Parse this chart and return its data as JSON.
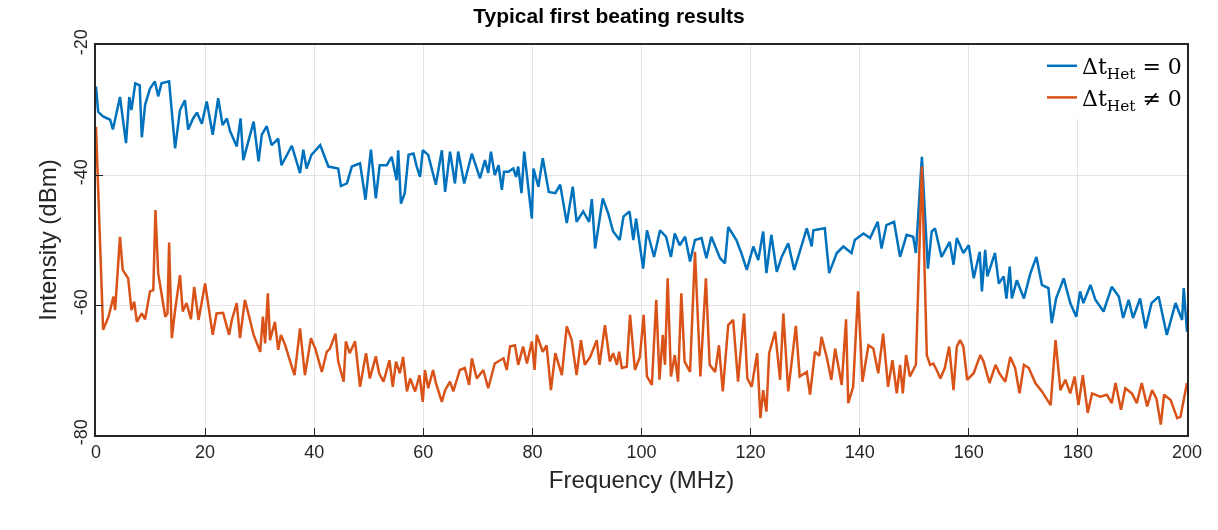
{
  "chart_data": {
    "type": "line",
    "title": "Typical first beating results",
    "xlabel": "Frequency (MHz)",
    "ylabel": "Intensity (dBm)",
    "xlim": [
      0,
      200
    ],
    "xticks": [
      0,
      20,
      40,
      60,
      80,
      100,
      120,
      140,
      160,
      180,
      200
    ],
    "ylim": [
      -80,
      -20
    ],
    "yticks": [
      -80,
      -60,
      -40,
      -20
    ],
    "grid": true,
    "legend": "top right",
    "marker": "none",
    "line_style": "solid",
    "series": [
      {
        "name": "Δt$_{Het}$ = 0",
        "color": "#0072bd",
        "x": [
          0,
          0.4,
          1.3,
          2.6,
          3.1,
          4.4,
          5.5,
          6.1,
          6.5,
          7.2,
          8,
          8.4,
          9,
          9.9,
          10.8,
          11.4,
          12,
          13.4,
          14.5,
          15.4,
          16.3,
          16.9,
          17.8,
          18.5,
          19.4,
          20.3,
          21.4,
          22.4,
          23.2,
          24,
          24.6,
          25.8,
          26.5,
          27,
          28.9,
          29.8,
          30.4,
          31.3,
          32.2,
          33.4,
          34,
          35.9,
          37.4,
          38,
          38.6,
          39.5,
          41.1,
          42.6,
          44.4,
          44.9,
          46,
          46.9,
          48.4,
          49.4,
          50.4,
          51.3,
          52,
          53.3,
          54.2,
          55.1,
          55.4,
          55.9,
          56.6,
          57.3,
          58.2,
          58.8,
          59.4,
          59.9,
          60.9,
          62.3,
          63.4,
          64,
          64.9,
          65.8,
          66.4,
          67.5,
          68.9,
          70.4,
          71.3,
          71.9,
          72.4,
          73.1,
          73.8,
          74.4,
          74.8,
          75.6,
          76.5,
          77,
          77.4,
          78,
          78.5,
          79.9,
          80.2,
          81.1,
          81.9,
          83,
          84.2,
          85.1,
          86.3,
          87.4,
          88.1,
          89.3,
          90.4,
          90.9,
          91.5,
          92.9,
          93.9,
          94.8,
          96,
          96.7,
          97.8,
          98.5,
          99,
          100.3,
          101,
          102.3,
          103.4,
          104.5,
          105.4,
          106.1,
          107,
          108,
          108.9,
          109.8,
          111,
          111.9,
          112.8,
          114.4,
          115.3,
          115.9,
          117.4,
          118.3,
          119.3,
          120.5,
          121.4,
          122.3,
          122.9,
          123.8,
          124.8,
          125.7,
          126.9,
          128,
          129.3,
          130.3,
          131.2,
          131.5,
          133.6,
          134.4,
          135.8,
          137,
          138.5,
          139.1,
          140.7,
          141.9,
          143.3,
          144,
          144.9,
          146.3,
          147.4,
          148.6,
          149.8,
          150.3,
          151.4,
          152.5,
          153.2,
          153.8,
          155,
          156.5,
          157.2,
          157.8,
          159,
          160,
          160.9,
          162,
          162.4,
          163,
          163.4,
          164.8,
          165.5,
          166.4,
          166.9,
          167.5,
          167.9,
          168.8,
          170.1,
          171.3,
          172.4,
          173.4,
          174.6,
          175.2,
          176,
          177.4,
          178.6,
          179.7,
          180.4,
          181,
          182.3,
          183.2,
          184.7,
          186.2,
          187.5,
          188.3,
          189.3,
          190.1,
          191.4,
          192.4,
          193.5,
          194.8,
          196.3,
          197.9,
          199.1,
          199.4,
          200
        ],
        "values": [
          -26.4,
          -30.3,
          -31,
          -31.5,
          -33,
          -28,
          -35.1,
          -28,
          -30,
          -25.9,
          -26.2,
          -34.2,
          -29.2,
          -26.7,
          -25.6,
          -27.9,
          -25.9,
          -25.6,
          -35.9,
          -30,
          -28.5,
          -33,
          -31.3,
          -30.4,
          -32.1,
          -28.7,
          -33.8,
          -28.2,
          -32.3,
          -31.3,
          -33.3,
          -35.6,
          -31.3,
          -37.7,
          -31.8,
          -37.9,
          -33.8,
          -32.5,
          -35.4,
          -34.4,
          -38.5,
          -35.5,
          -39.7,
          -36.1,
          -39,
          -36.9,
          -35.4,
          -38.7,
          -39,
          -41.7,
          -41.3,
          -38.7,
          -38.2,
          -43.8,
          -36.1,
          -43.6,
          -38.5,
          -38.5,
          -37.2,
          -40.8,
          -36.2,
          -44.4,
          -42.8,
          -36.9,
          -36.7,
          -38.7,
          -40.3,
          -36.2,
          -36.9,
          -41.5,
          -36.2,
          -42.6,
          -36.4,
          -41.3,
          -36.4,
          -41.3,
          -36.7,
          -40.5,
          -37.7,
          -39.7,
          -36.4,
          -40,
          -38.5,
          -42.3,
          -39.5,
          -39.5,
          -39,
          -40.3,
          -38.7,
          -42.8,
          -36.4,
          -46.7,
          -39,
          -41.8,
          -37.4,
          -42.6,
          -42.8,
          -41.5,
          -47.4,
          -41.8,
          -47.2,
          -45.6,
          -47.2,
          -43.7,
          -51.3,
          -43.6,
          -45.9,
          -48.7,
          -50,
          -46.4,
          -45.6,
          -50,
          -46.7,
          -54.4,
          -48.5,
          -52.6,
          -48.5,
          -49.5,
          -52.6,
          -49,
          -50.8,
          -49.5,
          -53.3,
          -50,
          -49.7,
          -52.8,
          -49.5,
          -52.8,
          -53.6,
          -48,
          -50,
          -52,
          -54.6,
          -51,
          -53.1,
          -48.7,
          -55.1,
          -49.2,
          -54.9,
          -52.6,
          -50.5,
          -54.6,
          -51,
          -48.2,
          -51,
          -48.5,
          -48.2,
          -55.1,
          -52,
          -51,
          -52,
          -50,
          -49,
          -49.7,
          -47.2,
          -51.3,
          -47.7,
          -47.2,
          -52.6,
          -49.2,
          -49.5,
          -52,
          -37.2,
          -54.4,
          -48.7,
          -48.2,
          -52.6,
          -50.3,
          -53.8,
          -49.7,
          -52,
          -50.8,
          -55.9,
          -51.8,
          -57.9,
          -51.5,
          -55.6,
          -52,
          -56.7,
          -55.6,
          -59,
          -54.1,
          -59,
          -56.2,
          -59,
          -55.1,
          -52.6,
          -56.9,
          -57.4,
          -62.8,
          -59,
          -55.9,
          -59.7,
          -61.8,
          -57.9,
          -59.7,
          -56.9,
          -59.2,
          -61,
          -57.2,
          -58.7,
          -62,
          -59.2,
          -62,
          -59,
          -63.6,
          -59.7,
          -58.7,
          -64.6,
          -59.7,
          -62.3,
          -57.4,
          -64.1
        ]
      },
      {
        "name": "Δt$_{Het}$ ≠ 0",
        "color": "#d95319",
        "x": [
          0,
          1.3,
          2.3,
          3.2,
          3.5,
          4.4,
          4.9,
          5.9,
          6.5,
          7,
          7.5,
          8.4,
          9,
          9.9,
          10.5,
          10.9,
          11.4,
          12.7,
          13.1,
          13.4,
          13.9,
          14.5,
          15.4,
          15.9,
          16.6,
          17.4,
          18,
          18.8,
          20,
          21.4,
          22.1,
          23.3,
          24.4,
          24.9,
          25.8,
          26.4,
          27.3,
          28.9,
          30.1,
          30.6,
          31,
          31.5,
          31.9,
          32.8,
          33.4,
          33.9,
          34.7,
          35.6,
          36.4,
          37.4,
          38.3,
          39.4,
          40.2,
          41.4,
          42.3,
          42.9,
          43.9,
          44.4,
          45.4,
          45.8,
          46.5,
          47.5,
          48.4,
          49.5,
          50.2,
          51.3,
          51.9,
          52.7,
          53.8,
          54.4,
          55,
          55.7,
          56.3,
          57,
          57.6,
          58.5,
          59.3,
          59.9,
          60.3,
          60.9,
          61.8,
          62.3,
          63.4,
          64,
          64.9,
          65.5,
          66.7,
          67.6,
          68.4,
          68.9,
          69.8,
          71,
          71.9,
          73.1,
          74.7,
          75.3,
          75.9,
          76.8,
          77.4,
          78.3,
          79,
          79.9,
          80.4,
          80.8,
          81.9,
          82.6,
          83.4,
          84.2,
          85.4,
          86.3,
          87.2,
          88.1,
          88.9,
          89.6,
          90.6,
          91.8,
          92.3,
          93.3,
          94.2,
          94.8,
          95.5,
          95.9,
          96.4,
          97.3,
          97.9,
          98.8,
          99.7,
          100.4,
          101,
          101.9,
          102.7,
          103.3,
          103.9,
          104.3,
          104.8,
          105.4,
          106.1,
          106.7,
          107.3,
          107.9,
          108.9,
          109.8,
          110.8,
          111.8,
          112.5,
          113.5,
          114.2,
          114.9,
          115.9,
          116.8,
          117.7,
          118.8,
          119.4,
          120.2,
          121.2,
          121.8,
          122.3,
          122.9,
          123.4,
          124.5,
          125.4,
          126,
          126.9,
          128.3,
          129,
          130.3,
          130.9,
          131.8,
          132.6,
          133,
          134,
          134.8,
          135.5,
          136.7,
          137.5,
          137.9,
          138.8,
          139.7,
          140.5,
          141.6,
          142.5,
          143.4,
          144.3,
          145.2,
          146,
          146.8,
          147.4,
          147.9,
          148.5,
          149.2,
          150.3,
          151.4,
          152.3,
          152.9,
          153.5,
          154.1,
          154.8,
          155.6,
          156.4,
          157.2,
          157.8,
          158.4,
          159,
          159.7,
          160.9,
          162.1,
          162.7,
          163.8,
          164.9,
          165.6,
          166.7,
          167.6,
          168.5,
          169.3,
          170.1,
          171,
          172.2,
          173.4,
          175,
          175.9,
          176.8,
          177.7,
          178.6,
          179.4,
          180.1,
          180.9,
          181.8,
          182.6,
          184.1,
          185.3,
          186.2,
          186.9,
          187.9,
          188.7,
          189.9,
          190.8,
          191.7,
          192.7,
          193.6,
          194.4,
          195.2,
          195.8,
          197,
          198.2,
          198.8,
          200
        ],
        "values": [
          -32.6,
          -63.8,
          -61.8,
          -58.7,
          -60.8,
          -49.5,
          -54.6,
          -55.9,
          -60.8,
          -59.5,
          -62.6,
          -61.3,
          -62.2,
          -57.9,
          -57.7,
          -45.4,
          -55.1,
          -61.8,
          -61.3,
          -50.4,
          -65.1,
          -60.8,
          -55.4,
          -61,
          -59.7,
          -62.2,
          -57.2,
          -62.3,
          -56.7,
          -64.6,
          -61.3,
          -61.2,
          -64.6,
          -62.3,
          -59.7,
          -65.1,
          -59.2,
          -64.6,
          -67.2,
          -61.8,
          -65.9,
          -58.2,
          -65.4,
          -62.6,
          -66.9,
          -64.6,
          -66.2,
          -68.7,
          -70.8,
          -63.6,
          -70.8,
          -65.1,
          -66.7,
          -70.3,
          -67.2,
          -66.7,
          -64.4,
          -68.7,
          -71.8,
          -65.6,
          -67.4,
          -65.6,
          -72.6,
          -67.4,
          -71.3,
          -67.9,
          -70.5,
          -71.8,
          -68.5,
          -72.6,
          -68.7,
          -70.5,
          -68,
          -73.3,
          -71.3,
          -73.3,
          -70.8,
          -74.9,
          -70,
          -72.8,
          -70,
          -72,
          -74.9,
          -73.1,
          -71.8,
          -73.3,
          -70,
          -69.7,
          -72.3,
          -68.2,
          -71.3,
          -70,
          -72.8,
          -69,
          -68.2,
          -70,
          -66.4,
          -66.2,
          -69.2,
          -66.4,
          -69,
          -65.6,
          -70,
          -64.6,
          -67.2,
          -66.2,
          -73.1,
          -67.4,
          -70.8,
          -63.3,
          -65.4,
          -70.8,
          -65.4,
          -69.2,
          -68,
          -65.4,
          -69.2,
          -63.1,
          -68.7,
          -67.4,
          -69.2,
          -67.2,
          -69.7,
          -69.5,
          -61.5,
          -70,
          -68,
          -61.5,
          -71,
          -72.3,
          -59.2,
          -71.5,
          -64.6,
          -69.2,
          -55.9,
          -71,
          -67.7,
          -71.8,
          -58.2,
          -68.7,
          -70.3,
          -51.8,
          -71,
          -55.9,
          -69.2,
          -70.3,
          -66.2,
          -73.3,
          -63.1,
          -62.3,
          -71.8,
          -61.3,
          -71.3,
          -72.6,
          -67.4,
          -77.4,
          -73.1,
          -76.4,
          -67.4,
          -64.1,
          -71.5,
          -61.3,
          -73.3,
          -63.2,
          -71,
          -70.3,
          -73.8,
          -67.2,
          -67.8,
          -64.9,
          -68.2,
          -71.5,
          -66.7,
          -72.3,
          -62.2,
          -75.1,
          -72.6,
          -57.9,
          -71.8,
          -66.2,
          -66.7,
          -70.5,
          -64.4,
          -72.6,
          -68.5,
          -73.6,
          -69.2,
          -73.6,
          -67.7,
          -71,
          -69.2,
          -38.7,
          -67.7,
          -69.2,
          -69,
          -70,
          -71.3,
          -69.7,
          -66.4,
          -73.1,
          -66.4,
          -65.4,
          -66.4,
          -71.5,
          -70.5,
          -67.7,
          -68.7,
          -72,
          -69.2,
          -70.5,
          -71.8,
          -68,
          -69.7,
          -73.6,
          -69.2,
          -69.7,
          -72,
          -73.3,
          -75.4,
          -65.4,
          -73.1,
          -71.5,
          -73.6,
          -71,
          -75.4,
          -70.8,
          -76.6,
          -73.6,
          -74.1,
          -73.8,
          -75.1,
          -72,
          -76.1,
          -72.8,
          -73.6,
          -75.1,
          -72,
          -75.6,
          -73.1,
          -74.4,
          -78.4,
          -73.8,
          -74.6,
          -77.4,
          -77.2,
          -72
        ]
      }
    ]
  }
}
